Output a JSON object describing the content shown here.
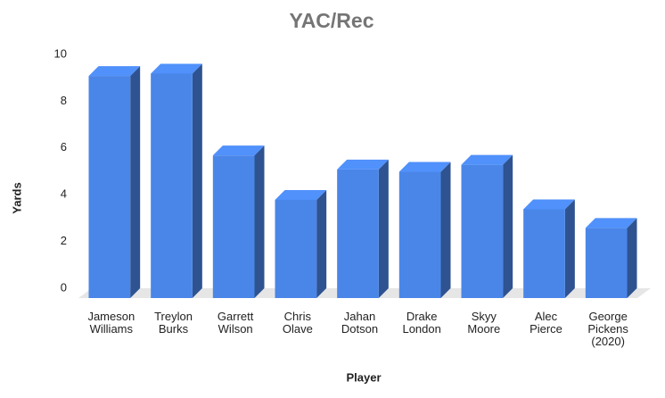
{
  "chart_data": {
    "type": "bar3d",
    "title": "YAC/Rec",
    "x_label": "Player",
    "y_label": "Yards",
    "categories": [
      "Jameson Williams",
      "Treylon Burks",
      "Garrett Wilson",
      "Chris Olave",
      "Jahan Dotson",
      "Drake London",
      "Skyy Moore",
      "Alec Pierce",
      "George Pickens (2020)"
    ],
    "values": [
      9.5,
      9.6,
      6.1,
      4.2,
      5.5,
      5.4,
      5.7,
      3.8,
      3.0
    ],
    "color": "#4a86e8",
    "ylim": [
      0,
      10
    ],
    "yticks": [
      0,
      2,
      4,
      6,
      8,
      10
    ],
    "grid": false
  }
}
